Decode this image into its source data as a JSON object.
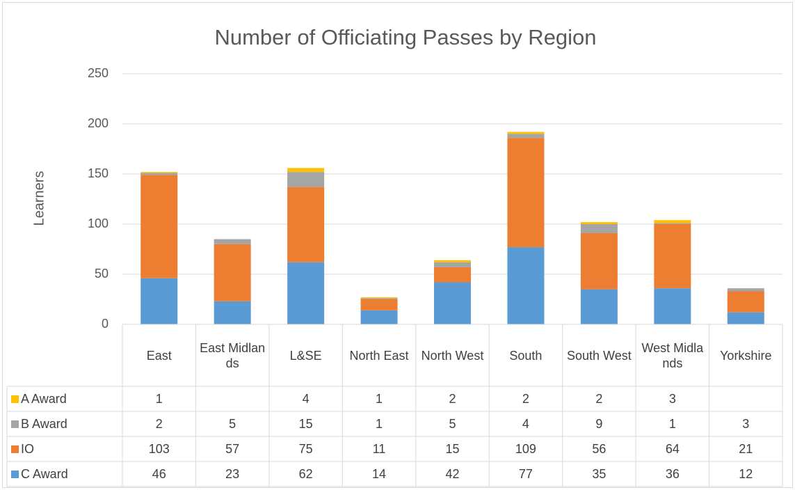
{
  "chart_data": {
    "type": "bar",
    "stacked": true,
    "title": "Number of Officiating Passes by Region",
    "y_label": "Learners",
    "categories": [
      "East",
      "East Midlands",
      "L&SE",
      "North East",
      "North West",
      "South",
      "South West",
      "West Midlands",
      "Yorkshire"
    ],
    "series": [
      {
        "name": "C Award",
        "color": "#5b9bd5",
        "values": [
          46,
          23,
          62,
          14,
          42,
          77,
          35,
          36,
          12
        ]
      },
      {
        "name": "IO",
        "color": "#ed7d31",
        "values": [
          103,
          57,
          75,
          11,
          15,
          109,
          56,
          64,
          21
        ]
      },
      {
        "name": "B Award",
        "color": "#a5a5a5",
        "values": [
          2,
          5,
          15,
          1,
          5,
          4,
          9,
          1,
          3
        ]
      },
      {
        "name": "A Award",
        "color": "#ffc000",
        "values": [
          1,
          null,
          4,
          1,
          2,
          2,
          2,
          3,
          null
        ]
      }
    ],
    "ylim": [
      0,
      250
    ],
    "yticks": [
      0,
      50,
      100,
      150,
      200,
      250
    ],
    "grid": true,
    "data_table": true
  }
}
